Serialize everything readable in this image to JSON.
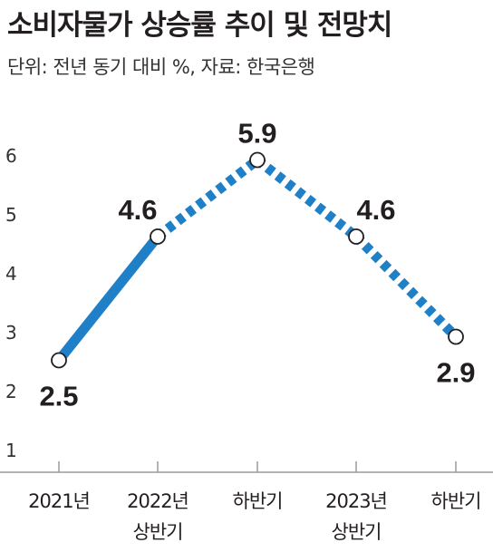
{
  "header": {
    "title": "소비자물가 상승률 추이 및 전망치",
    "subtitle": "단위: 전년 동기 대비 %, 자료: 한국은행"
  },
  "colors": {
    "line": "#1f80c8",
    "marker_fill": "#ffffff",
    "marker_stroke": "#231f20",
    "axis": "#9a9a9a"
  },
  "chart_data": {
    "type": "line",
    "title": "소비자물가 상승률 추이 및 전망치",
    "subtitle": "단위: 전년 동기 대비 %, 자료: 한국은행",
    "categories": [
      [
        "2021년"
      ],
      [
        "2022년",
        "상반기"
      ],
      [
        "하반기"
      ],
      [
        "2023년",
        "상반기"
      ],
      [
        "하반기"
      ]
    ],
    "series": [
      {
        "values": [
          2.5,
          4.6,
          5.9,
          4.6,
          2.9
        ],
        "labels": [
          "2.5",
          "4.6",
          "5.9",
          "4.6",
          "2.9"
        ],
        "segment_style": [
          "solid",
          "dotted",
          "dotted",
          "dotted"
        ]
      }
    ],
    "yticks": [
      "1",
      "2",
      "3",
      "4",
      "5",
      "6"
    ],
    "ylim": [
      1,
      6
    ],
    "grid": false,
    "legend": "none"
  }
}
